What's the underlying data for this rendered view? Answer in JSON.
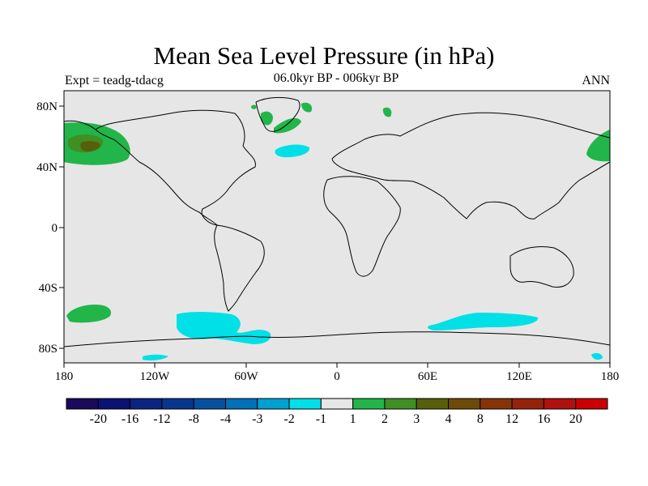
{
  "title": "Mean Sea Level Pressure (in hPa)",
  "left_label": "Expt = teadg-tdacg",
  "center_label": "06.0kyr BP - 006kyr BP",
  "right_label": "ANN",
  "x_tick_labels": [
    "180",
    "120W",
    "60W",
    "0",
    "60E",
    "120E",
    "180"
  ],
  "y_tick_labels": [
    "80N",
    "40N",
    "0",
    "40S",
    "80S"
  ],
  "colorbar": {
    "colors": [
      "#1a0a5c",
      "#0a1273",
      "#0a2480",
      "#08368e",
      "#0650a0",
      "#0070b8",
      "#00a0d2",
      "#00e0e6",
      "#e6e6e6",
      "#22b54a",
      "#3f8f22",
      "#585f0a",
      "#6e4a08",
      "#853408",
      "#96220a",
      "#b01010",
      "#cc0000"
    ],
    "labels": [
      "-20",
      "-16",
      "-12",
      "-8",
      "-4",
      "-3",
      "-2",
      "-1",
      "1",
      "2",
      "3",
      "4",
      "8",
      "12",
      "16",
      "20"
    ]
  },
  "colors": {
    "background_fill": "#e6e6e6",
    "positive_1_2": "#22b54a",
    "positive_2_3": "#3f8f22",
    "positive_3_4": "#585f0a",
    "negative_2_1": "#00e0e6"
  }
}
